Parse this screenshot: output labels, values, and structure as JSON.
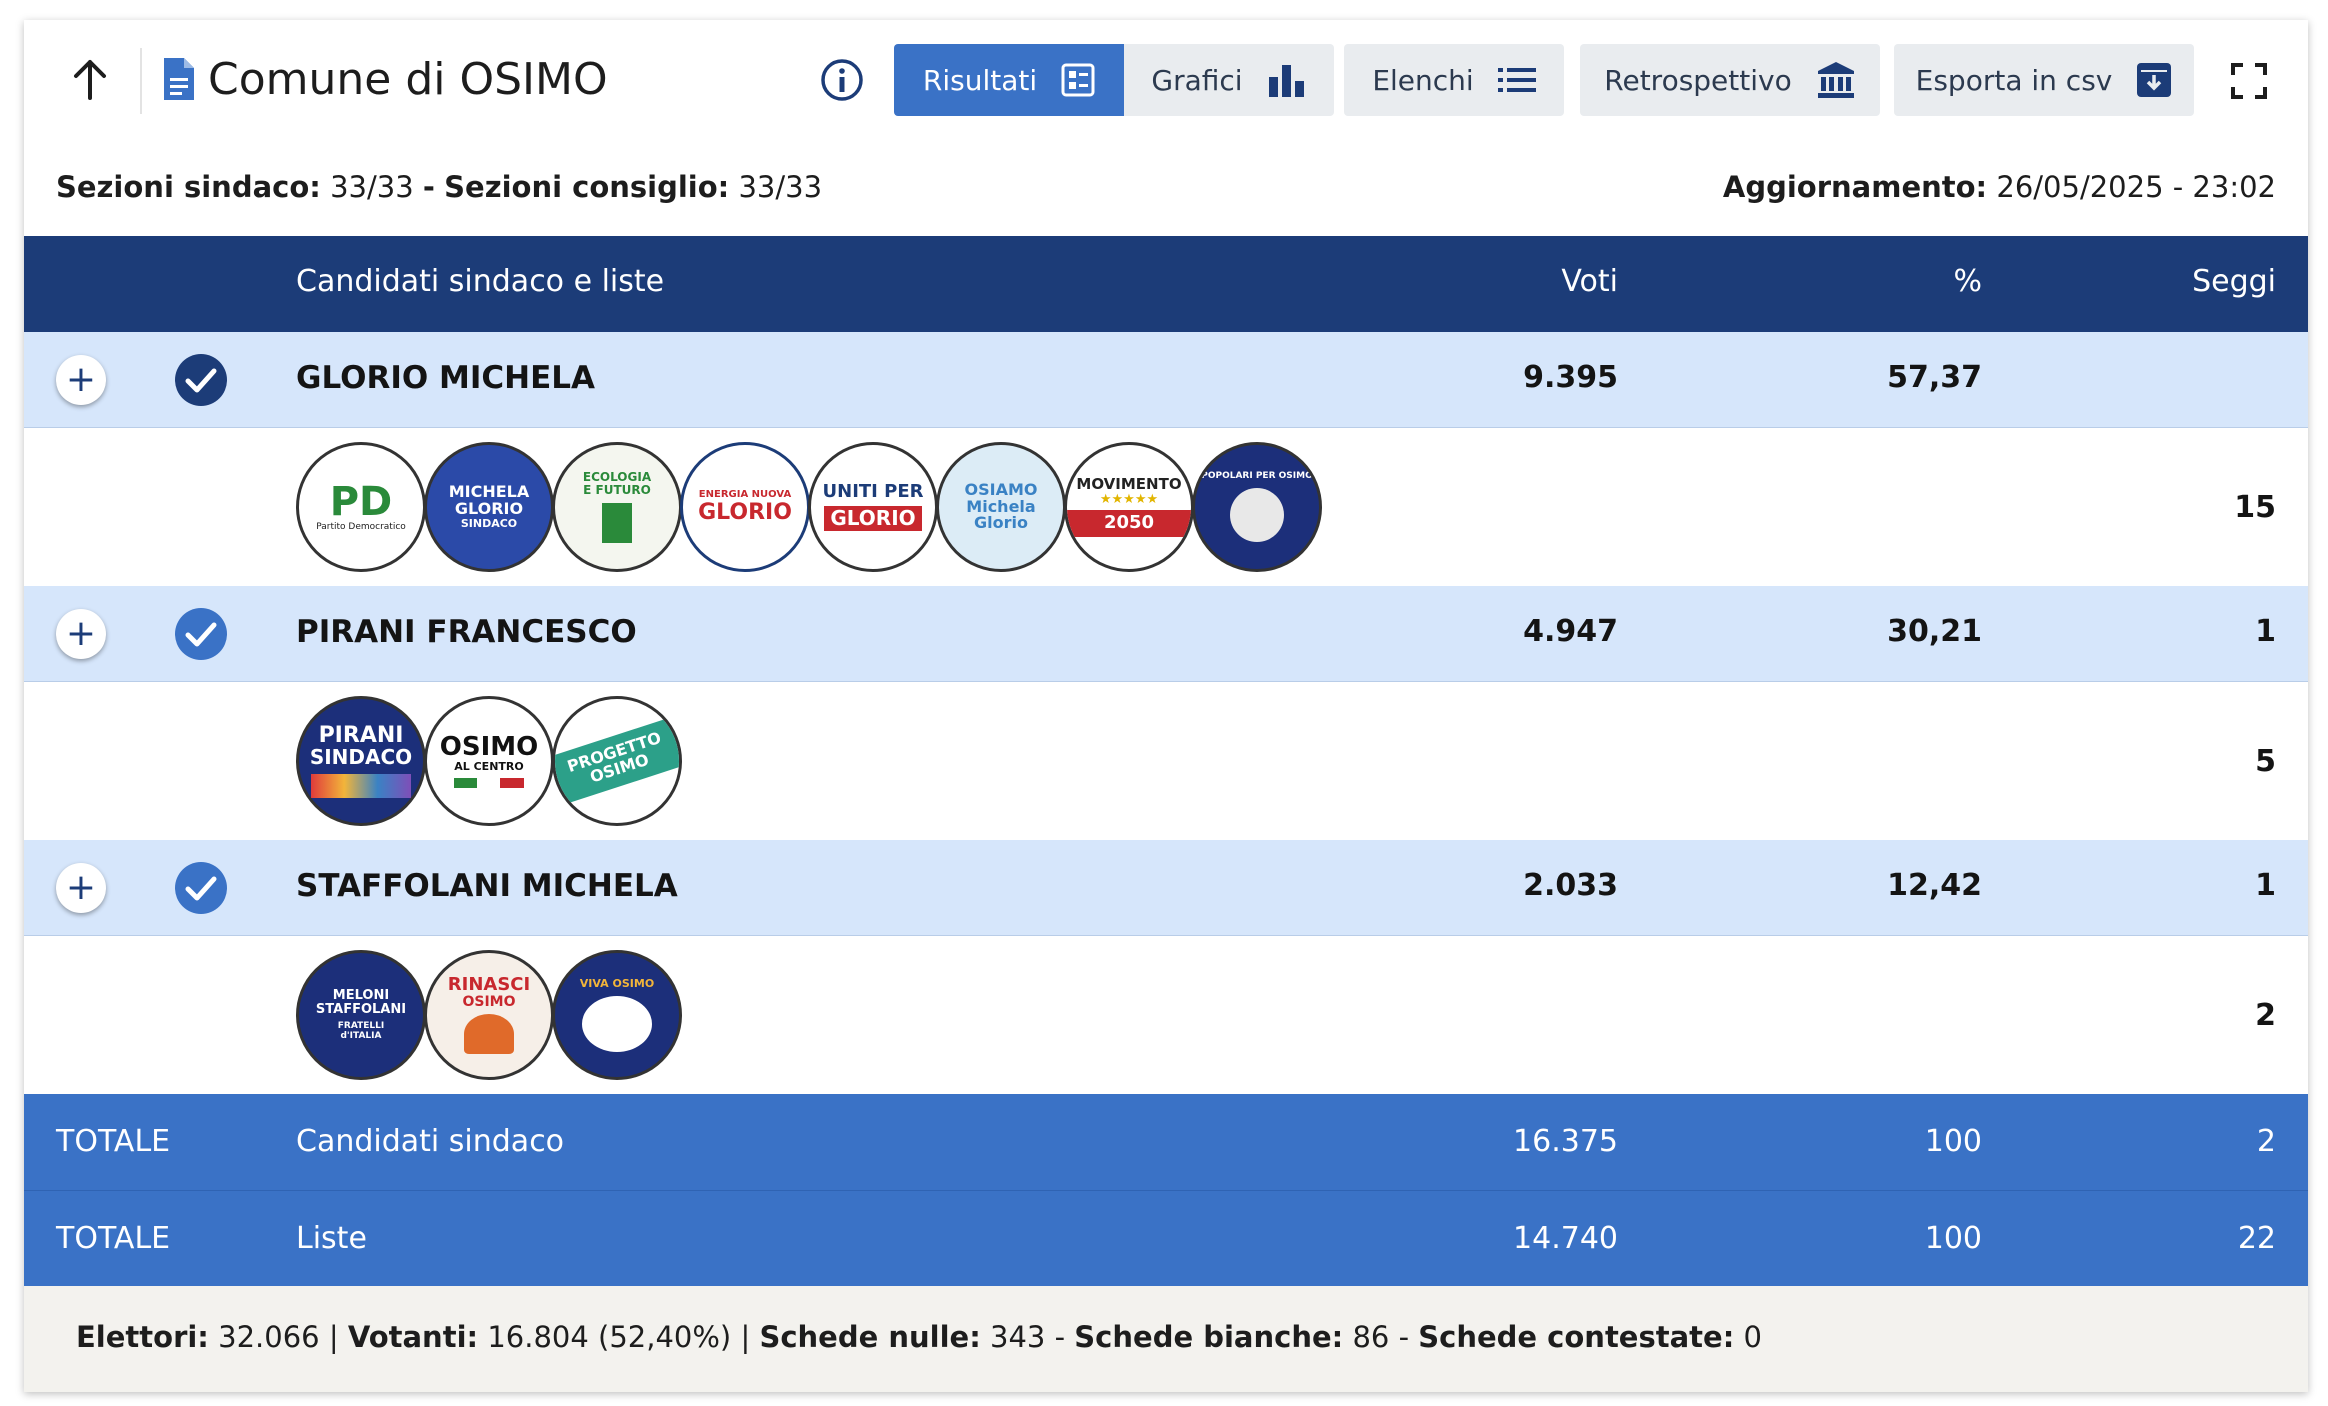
{
  "header": {
    "title": "Comune di OSIMO",
    "buttons": {
      "risultati": "Risultati",
      "grafici": "Grafici",
      "elenchi": "Elenchi",
      "retrospettivo": "Retrospettivo",
      "esporta": "Esporta in csv"
    }
  },
  "sections": {
    "sindaco_label": "Sezioni sindaco:",
    "sindaco_value": "33/33",
    "sep": "-",
    "consiglio_label": "Sezioni consiglio:",
    "consiglio_value": "33/33",
    "update_label": "Aggiornamento:",
    "update_value": "26/05/2025 - 23:02"
  },
  "table": {
    "col_candidates": "Candidati sindaco e liste",
    "col_votes": "Voti",
    "col_pct": "%",
    "col_seats": "Seggi",
    "candidates": [
      {
        "name": "GLORIO MICHELA",
        "votes": "9.395",
        "pct": "57,37",
        "seats": "",
        "list_seats": "15",
        "logos": [
          {
            "text": "PD",
            "sub": "Partito Democratico"
          },
          {
            "text": "MICHELA GLORIO",
            "sub": "SINDACO"
          },
          {
            "text": "ECOLOGIA E FUTURO",
            "sub": ""
          },
          {
            "text": "GLORIO",
            "sub": "ENERGIA NUOVA"
          },
          {
            "text": "UNITI PER",
            "sub": "GLORIO"
          },
          {
            "text": "OSIAMO",
            "sub": "Michela Glorio"
          },
          {
            "text": "MOVIMENTO",
            "sub": "2050"
          },
          {
            "text": "POPOLARI PER OSIMO",
            "sub": ""
          }
        ]
      },
      {
        "name": "PIRANI FRANCESCO",
        "votes": "4.947",
        "pct": "30,21",
        "seats": "1",
        "list_seats": "5",
        "logos": [
          {
            "text": "PIRANI",
            "sub": "SINDACO"
          },
          {
            "text": "OSIMO",
            "sub": "AL CENTRO"
          },
          {
            "text": "PROGETTO",
            "sub": "OSIMO"
          }
        ]
      },
      {
        "name": "STAFFOLANI MICHELA",
        "votes": "2.033",
        "pct": "12,42",
        "seats": "1",
        "list_seats": "2",
        "logos": [
          {
            "text": "MELONI STAFFOLANI",
            "sub": "FRATELLI d'ITALIA"
          },
          {
            "text": "RINASCI",
            "sub": "OSIMO"
          },
          {
            "text": "VIVA OSIMO",
            "sub": ""
          }
        ]
      }
    ],
    "totals": [
      {
        "label": "TOTALE",
        "desc": "Candidati sindaco",
        "votes": "16.375",
        "pct": "100",
        "seats": "2"
      },
      {
        "label": "TOTALE",
        "desc": "Liste",
        "votes": "14.740",
        "pct": "100",
        "seats": "22"
      }
    ]
  },
  "footer": {
    "elettori_label": "Elettori:",
    "elettori_value": "32.066",
    "votanti_label": "Votanti:",
    "votanti_value": "16.804 (52,40%)",
    "nulle_label": "Schede nulle:",
    "nulle_value": "343",
    "bianche_label": "Schede bianche:",
    "bianche_value": "86",
    "contestate_label": "Schede contestate:",
    "contestate_value": "0"
  },
  "colors": {
    "header_blue": "#1c3c78",
    "accent_blue": "#3a72c6",
    "candidate_row": "#d6e6fb"
  },
  "icons": {
    "back": "arrow-up-icon",
    "doc": "document-icon",
    "info": "info-icon",
    "risultati": "list-grid-icon",
    "grafici": "bar-chart-icon",
    "elenchi": "list-icon",
    "retrospettivo": "bank-icon",
    "esporta": "archive-download-icon",
    "expand": "fullscreen-icon"
  }
}
